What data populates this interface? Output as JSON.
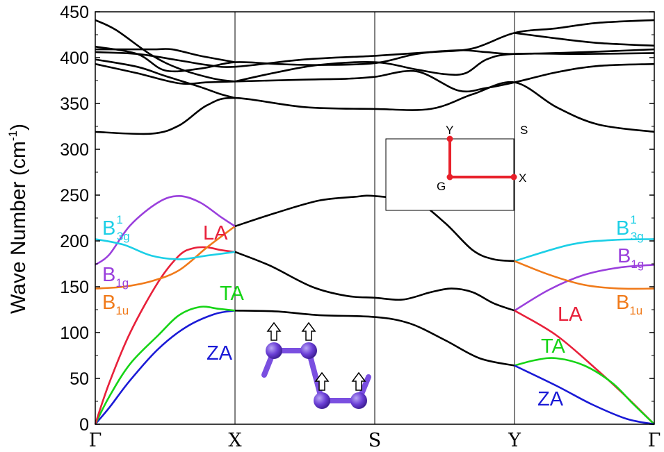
{
  "chart_data": {
    "type": "line",
    "ylabel": "Wave Number (cm⁻¹)",
    "ylabel_parts": {
      "main": "Wave Number (cm",
      "sup": "-1",
      "close": ")"
    },
    "ylim": [
      0,
      450
    ],
    "yticks": [
      0,
      50,
      100,
      150,
      200,
      250,
      300,
      350,
      400,
      450
    ],
    "kpoints": [
      {
        "label": "Γ",
        "pos": 0
      },
      {
        "label": "X",
        "pos": 1
      },
      {
        "label": "S",
        "pos": 2
      },
      {
        "label": "Y",
        "pos": 3
      },
      {
        "label": "Γ",
        "pos": 4
      }
    ],
    "colors": {
      "ZA": "#1a1ad6",
      "TA": "#16d416",
      "LA": "#e8203a",
      "B1u": "#f07a1a",
      "B1g": "#9a3fdc",
      "B3g": "#1ccfe6",
      "other": "#000000"
    },
    "series": [
      {
        "name": "ZA",
        "color_key": "ZA",
        "points": [
          [
            0,
            0
          ],
          [
            0.1,
            18
          ],
          [
            0.25,
            48
          ],
          [
            0.45,
            82
          ],
          [
            0.65,
            106
          ],
          [
            0.85,
            120
          ],
          [
            1,
            124
          ]
        ]
      },
      {
        "name": "TA",
        "color_key": "TA",
        "points": [
          [
            0,
            0
          ],
          [
            0.1,
            30
          ],
          [
            0.25,
            66
          ],
          [
            0.45,
            97
          ],
          [
            0.6,
            119
          ],
          [
            0.75,
            128
          ],
          [
            0.88,
            126
          ],
          [
            1,
            124
          ]
        ]
      },
      {
        "name": "LA",
        "color_key": "LA",
        "points": [
          [
            0,
            0
          ],
          [
            0.1,
            45
          ],
          [
            0.25,
            100
          ],
          [
            0.45,
            155
          ],
          [
            0.6,
            184
          ],
          [
            0.7,
            192
          ],
          [
            0.8,
            193
          ],
          [
            0.9,
            190
          ],
          [
            1,
            188
          ]
        ]
      },
      {
        "name": "B1u",
        "color_key": "B1u",
        "points": [
          [
            0,
            148
          ],
          [
            0.2,
            150
          ],
          [
            0.4,
            156
          ],
          [
            0.6,
            168
          ],
          [
            0.8,
            193
          ],
          [
            1,
            216
          ]
        ]
      },
      {
        "name": "B1g",
        "color_key": "B1g",
        "points": [
          [
            0,
            174
          ],
          [
            0.1,
            185
          ],
          [
            0.25,
            217
          ],
          [
            0.45,
            242
          ],
          [
            0.6,
            249
          ],
          [
            0.75,
            242
          ],
          [
            0.9,
            226
          ],
          [
            1,
            216
          ]
        ]
      },
      {
        "name": "B3g",
        "color_key": "B3g",
        "points": [
          [
            0,
            202
          ],
          [
            0.2,
            196
          ],
          [
            0.4,
            184
          ],
          [
            0.6,
            180
          ],
          [
            0.8,
            184
          ],
          [
            1,
            188
          ]
        ]
      },
      {
        "name": "",
        "color_key": "other",
        "points": [
          [
            1,
            124
          ],
          [
            1.3,
            123
          ],
          [
            1.6,
            119
          ],
          [
            2,
            117
          ],
          [
            2.25,
            110
          ],
          [
            2.5,
            92
          ],
          [
            2.75,
            72
          ],
          [
            3,
            64
          ]
        ]
      },
      {
        "name": "",
        "color_key": "other",
        "points": [
          [
            1,
            188
          ],
          [
            1.25,
            173
          ],
          [
            1.55,
            150
          ],
          [
            1.8,
            140
          ],
          [
            2,
            138
          ],
          [
            2.2,
            136
          ],
          [
            2.4,
            144
          ],
          [
            2.55,
            148
          ],
          [
            2.7,
            144
          ],
          [
            2.85,
            132
          ],
          [
            3,
            124
          ]
        ]
      },
      {
        "name": "",
        "color_key": "other",
        "points": [
          [
            1,
            216
          ],
          [
            1.3,
            231
          ],
          [
            1.6,
            244
          ],
          [
            1.85,
            248
          ],
          [
            2,
            249
          ],
          [
            2.3,
            242
          ],
          [
            2.5,
            220
          ],
          [
            2.7,
            190
          ],
          [
            2.85,
            180
          ],
          [
            3,
            178
          ]
        ]
      },
      {
        "name": "",
        "color_key": "other",
        "points": [
          [
            0,
            319
          ],
          [
            0.4,
            317
          ],
          [
            0.6,
            326
          ],
          [
            0.8,
            348
          ],
          [
            1,
            356
          ],
          [
            1.5,
            346
          ],
          [
            2,
            344
          ],
          [
            2.4,
            344
          ],
          [
            2.7,
            360
          ],
          [
            3,
            373
          ],
          [
            3.3,
            346
          ],
          [
            3.6,
            327
          ],
          [
            4,
            319
          ]
        ]
      },
      {
        "name": "",
        "color_key": "other",
        "points": [
          [
            0,
            393
          ],
          [
            0.3,
            383
          ],
          [
            0.6,
            372
          ],
          [
            0.8,
            373
          ],
          [
            1,
            374
          ],
          [
            1.5,
            376
          ],
          [
            1.8,
            377
          ],
          [
            2,
            379
          ],
          [
            2.3,
            385
          ],
          [
            2.6,
            364
          ],
          [
            2.8,
            367
          ],
          [
            3,
            373
          ],
          [
            3.3,
            384
          ],
          [
            3.6,
            391
          ],
          [
            4,
            393
          ]
        ]
      },
      {
        "name": "",
        "color_key": "other",
        "points": [
          [
            0,
            398
          ],
          [
            0.3,
            390
          ],
          [
            0.5,
            380
          ],
          [
            0.75,
            368
          ],
          [
            0.9,
            360
          ],
          [
            1,
            356
          ]
        ]
      },
      {
        "name": "",
        "color_key": "other",
        "points": [
          [
            1,
            374
          ],
          [
            1.3,
            384
          ],
          [
            1.6,
            392
          ],
          [
            2,
            395
          ],
          [
            2.3,
            387
          ],
          [
            2.5,
            382
          ],
          [
            2.65,
            383
          ],
          [
            2.8,
            398
          ],
          [
            3,
            404
          ],
          [
            3.5,
            404
          ],
          [
            4,
            405
          ]
        ]
      },
      {
        "name": "",
        "color_key": "other",
        "points": [
          [
            0,
            412
          ],
          [
            0.3,
            404
          ],
          [
            0.5,
            386
          ],
          [
            0.75,
            388
          ],
          [
            1,
            395
          ],
          [
            1.3,
            393
          ],
          [
            1.6,
            392
          ],
          [
            2,
            394
          ],
          [
            2.3,
            404
          ],
          [
            2.6,
            408
          ],
          [
            2.8,
            406
          ],
          [
            3,
            404
          ],
          [
            3.5,
            406
          ],
          [
            4,
            409
          ]
        ]
      },
      {
        "name": "",
        "color_key": "other",
        "points": [
          [
            0,
            409
          ],
          [
            0.4,
            409
          ],
          [
            0.55,
            409
          ],
          [
            0.75,
            402
          ],
          [
            1,
            395
          ]
        ]
      },
      {
        "name": "",
        "color_key": "other",
        "points": [
          [
            0,
            441
          ],
          [
            0.15,
            430
          ],
          [
            0.4,
            403
          ],
          [
            0.6,
            388
          ],
          [
            0.85,
            377
          ],
          [
            1,
            374
          ]
        ]
      },
      {
        "name": "",
        "color_key": "other",
        "points": [
          [
            0,
            406
          ],
          [
            0.3,
            404
          ],
          [
            0.6,
            397
          ],
          [
            0.8,
            392
          ],
          [
            1,
            390
          ],
          [
            1.5,
            398
          ],
          [
            2,
            402
          ],
          [
            2.4,
            406
          ],
          [
            2.7,
            410
          ],
          [
            3,
            427
          ],
          [
            3.3,
            432
          ],
          [
            3.6,
            438
          ],
          [
            4,
            441
          ]
        ]
      },
      {
        "name": "",
        "color_key": "other",
        "points": [
          [
            3,
            427
          ],
          [
            3.3,
            421
          ],
          [
            3.6,
            416
          ],
          [
            4,
            413
          ]
        ]
      },
      {
        "name": "",
        "color_key": "other",
        "points": [
          [
            3,
            178
          ],
          [
            3.4,
            196
          ],
          [
            3.7,
            201
          ],
          [
            4,
            202
          ]
        ]
      },
      {
        "name": "",
        "color_key": "other",
        "points": [
          [
            3,
            124
          ],
          [
            3.25,
            147
          ],
          [
            3.5,
            163
          ],
          [
            3.75,
            171
          ],
          [
            4,
            174
          ]
        ]
      },
      {
        "name": "",
        "color_key": "other",
        "points": [
          [
            3,
            178
          ],
          [
            3.25,
            163
          ],
          [
            3.5,
            152
          ],
          [
            3.75,
            148
          ],
          [
            4,
            148
          ]
        ]
      },
      {
        "name": "",
        "color_key": "other",
        "points": [
          [
            3,
            124
          ],
          [
            3.3,
            97
          ],
          [
            3.6,
            58
          ],
          [
            3.8,
            30
          ],
          [
            4,
            0
          ]
        ]
      },
      {
        "name": "",
        "color_key": "other",
        "points": [
          [
            3,
            64
          ],
          [
            3.15,
            70
          ],
          [
            3.3,
            72
          ],
          [
            3.5,
            64
          ],
          [
            3.7,
            45
          ],
          [
            3.85,
            22
          ],
          [
            4,
            0
          ]
        ]
      },
      {
        "name": "",
        "color_key": "other",
        "points": [
          [
            3,
            64
          ],
          [
            3.3,
            42
          ],
          [
            3.55,
            22
          ],
          [
            3.8,
            6
          ],
          [
            4,
            0
          ]
        ]
      }
    ],
    "series_color_overrides": {
      "18": "B3g",
      "19": "B1g",
      "20": "B1u",
      "21": "LA",
      "22": "TA",
      "23": "ZA"
    },
    "branch_labels": [
      {
        "id": "b3g-left",
        "base": "B",
        "sup": "1",
        "sub": "3g",
        "color_key": "B3g"
      },
      {
        "id": "la-left",
        "text": "LA",
        "color_key": "LA"
      },
      {
        "id": "b1g-left",
        "base": "B",
        "sub": "1g",
        "color_key": "B1g"
      },
      {
        "id": "b1u-left",
        "base": "B",
        "sub": "1u",
        "color_key": "B1u"
      },
      {
        "id": "ta-left",
        "text": "TA",
        "color_key": "TA"
      },
      {
        "id": "za-left",
        "text": "ZA",
        "color_key": "ZA"
      },
      {
        "id": "b3g-right",
        "base": "B",
        "sup": "1",
        "sub": "3g",
        "color_key": "B3g"
      },
      {
        "id": "b1g-right",
        "base": "B",
        "sub": "1g",
        "color_key": "B1g"
      },
      {
        "id": "la-right",
        "text": "LA",
        "color_key": "LA"
      },
      {
        "id": "b1u-right",
        "base": "B",
        "sub": "1u",
        "color_key": "B1u"
      },
      {
        "id": "ta-right",
        "text": "TA",
        "color_key": "TA"
      },
      {
        "id": "za-right",
        "text": "ZA",
        "color_key": "ZA"
      }
    ],
    "inset": {
      "labels": {
        "Y": "Y",
        "S": "S",
        "G": "G",
        "X": "X"
      },
      "path_color": "#e8202a"
    }
  }
}
